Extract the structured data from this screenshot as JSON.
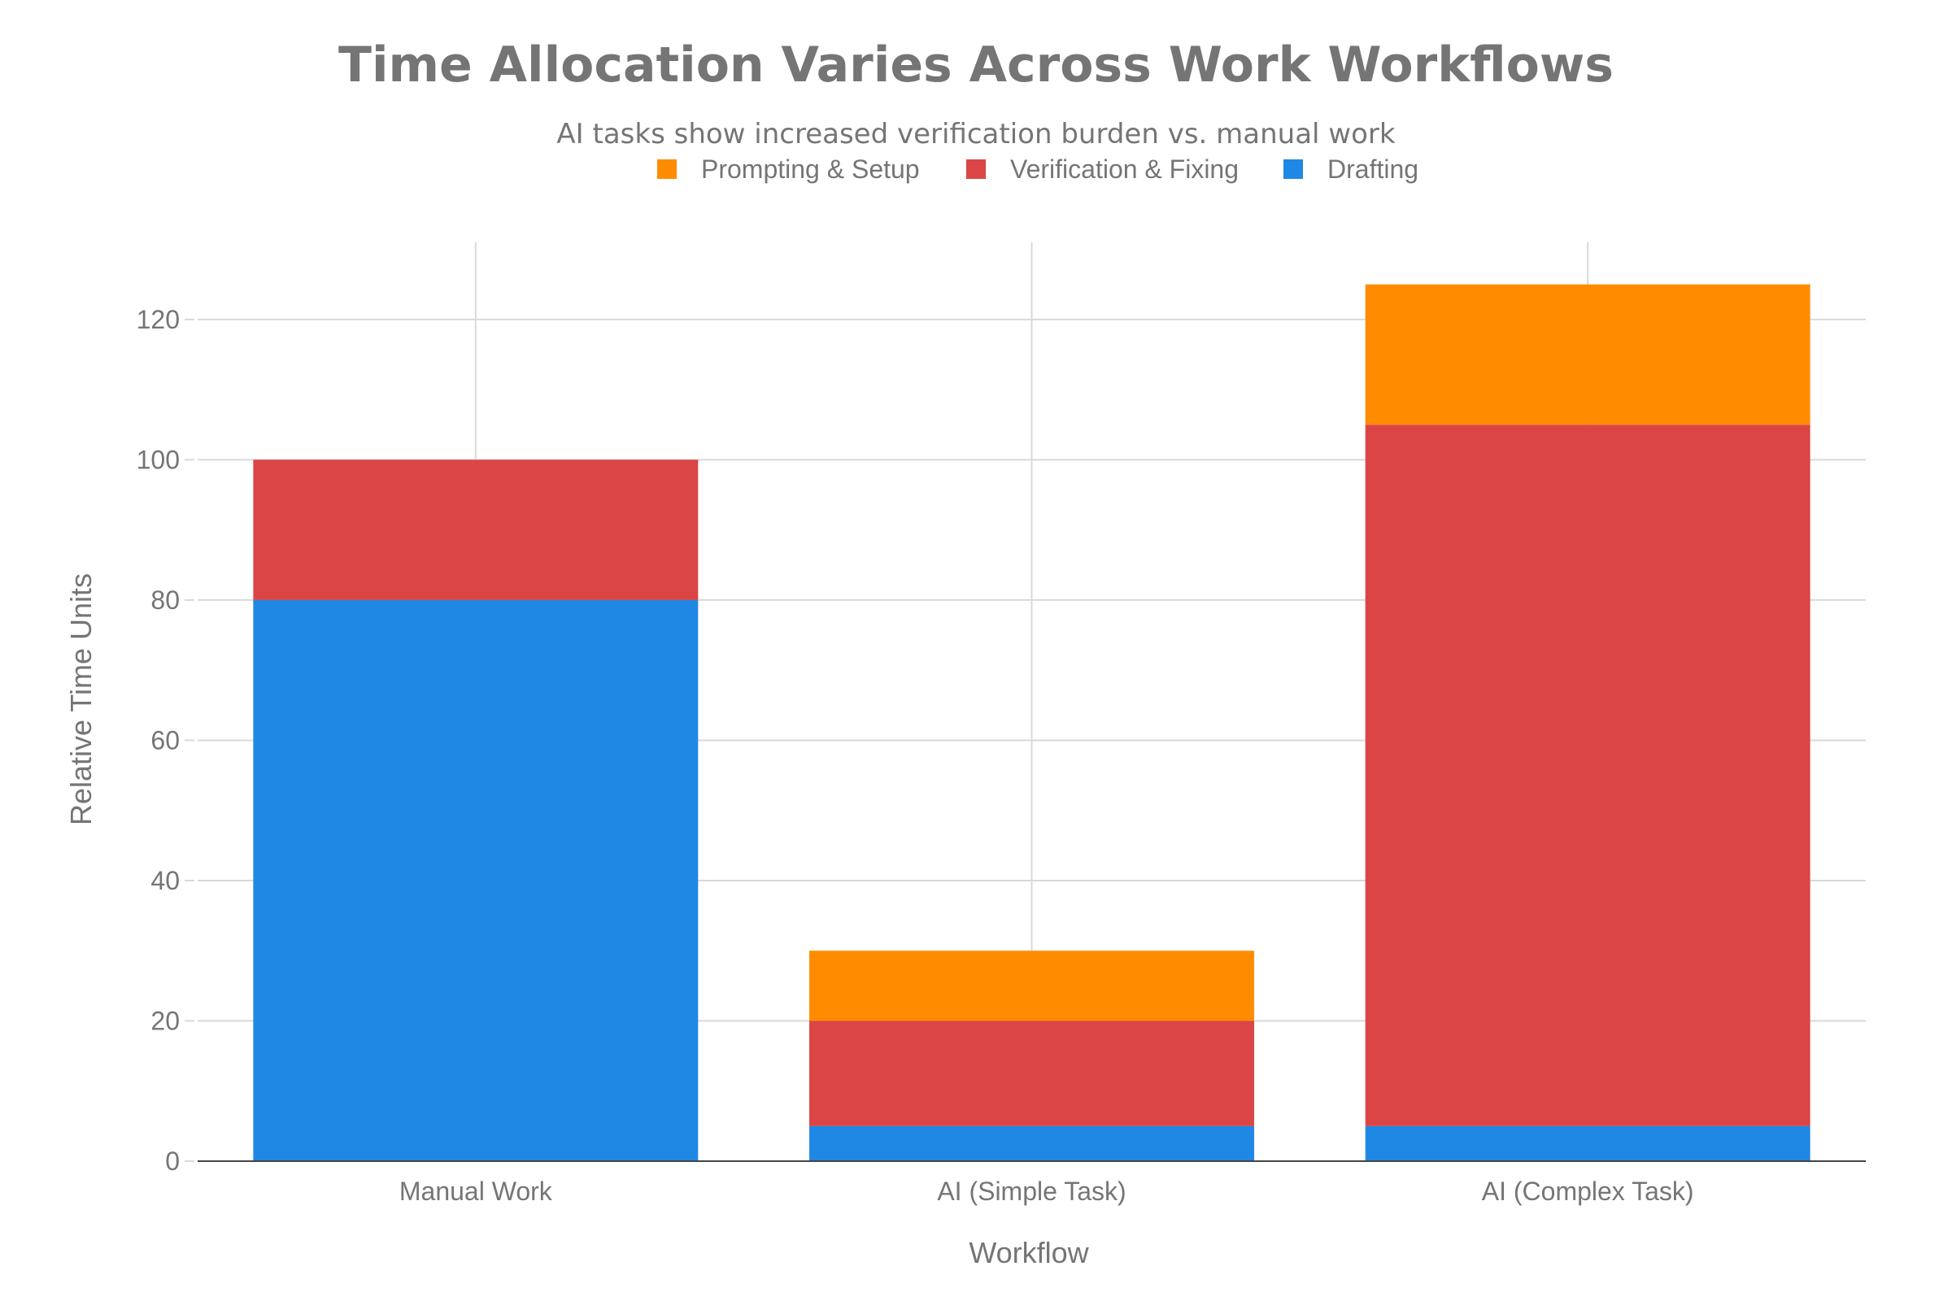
{
  "chart_data": {
    "type": "bar",
    "stacked": true,
    "title": "Time Allocation Varies Across Work Workflows",
    "subtitle": "AI tasks show increased verification burden vs. manual work",
    "xlabel": "Workflow",
    "ylabel": "Relative Time Units",
    "categories": [
      "Manual Work",
      "AI (Simple Task)",
      "AI (Complex Task)"
    ],
    "ylim": [
      0,
      131
    ],
    "yticks": [
      0,
      20,
      40,
      60,
      80,
      100,
      120
    ],
    "grid": true,
    "legend_position": "top-center",
    "series": [
      {
        "name": "Drafting",
        "values": [
          80,
          5,
          5
        ],
        "color": "#1F88E5"
      },
      {
        "name": "Verification & Fixing",
        "values": [
          20,
          15,
          100
        ],
        "color": "#DB4545"
      },
      {
        "name": "Prompting & Setup",
        "values": [
          0,
          10,
          20
        ],
        "color": "#FF8C00"
      }
    ],
    "legend_order": [
      "Prompting & Setup",
      "Verification & Fixing",
      "Drafting"
    ]
  }
}
